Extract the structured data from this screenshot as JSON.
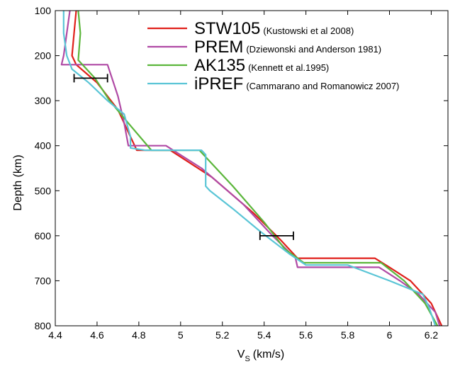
{
  "chart_data": {
    "type": "line",
    "xlabel": "V",
    "xlabel_subscript": "S",
    "xlabel_unit": "(km/s)",
    "ylabel": "Depth (km)",
    "xlim": [
      4.4,
      6.28
    ],
    "ylim": [
      100,
      800
    ],
    "y_inverted": true,
    "grid": false,
    "legend_position": "top-right",
    "x_ticks": [
      4.4,
      4.6,
      4.8,
      5,
      5.2,
      5.4,
      5.6,
      5.8,
      6,
      6.2
    ],
    "x_tick_labels": [
      "4.4",
      "4.6",
      "4.8",
      "5",
      "5.2",
      "5.4",
      "5.6",
      "5.8",
      "6",
      "6.2"
    ],
    "y_ticks": [
      100,
      200,
      300,
      400,
      500,
      600,
      700,
      800
    ],
    "y_tick_labels": [
      "100",
      "200",
      "300",
      "400",
      "500",
      "600",
      "700",
      "800"
    ],
    "series": [
      {
        "name": "STW105",
        "reference": "(Kustowski et al 2008)",
        "color": "#e0201b",
        "points": [
          [
            4.5,
            100
          ],
          [
            4.49,
            150
          ],
          [
            4.48,
            200
          ],
          [
            4.5,
            220
          ],
          [
            4.6,
            260
          ],
          [
            4.7,
            320
          ],
          [
            4.75,
            370
          ],
          [
            4.78,
            400
          ],
          [
            4.79,
            410
          ],
          [
            4.95,
            410
          ],
          [
            5.15,
            470
          ],
          [
            5.35,
            550
          ],
          [
            5.48,
            610
          ],
          [
            5.56,
            650
          ],
          [
            5.93,
            650
          ],
          [
            6.0,
            670
          ],
          [
            6.1,
            700
          ],
          [
            6.2,
            750
          ],
          [
            6.25,
            800
          ]
        ]
      },
      {
        "name": "PREM",
        "reference": "(Dziewonski and Anderson 1981)",
        "color": "#b04aa5",
        "points": [
          [
            4.47,
            100
          ],
          [
            4.455,
            150
          ],
          [
            4.44,
            200
          ],
          [
            4.43,
            220
          ],
          [
            4.65,
            220
          ],
          [
            4.7,
            290
          ],
          [
            4.73,
            350
          ],
          [
            4.75,
            400
          ],
          [
            4.93,
            400
          ],
          [
            5.1,
            450
          ],
          [
            5.3,
            530
          ],
          [
            5.44,
            600
          ],
          [
            5.55,
            650
          ],
          [
            5.56,
            670
          ],
          [
            5.95,
            670
          ],
          [
            6.05,
            700
          ],
          [
            6.14,
            730
          ],
          [
            6.22,
            770
          ],
          [
            6.24,
            800
          ]
        ]
      },
      {
        "name": "AK135",
        "reference": "(Kennett et al.1995)",
        "color": "#5bb63b",
        "points": [
          [
            4.51,
            100
          ],
          [
            4.52,
            150
          ],
          [
            4.51,
            210
          ],
          [
            4.59,
            250
          ],
          [
            4.66,
            300
          ],
          [
            4.75,
            350
          ],
          [
            4.86,
            410
          ],
          [
            5.09,
            410
          ],
          [
            5.25,
            490
          ],
          [
            5.4,
            570
          ],
          [
            5.5,
            630
          ],
          [
            5.59,
            660
          ],
          [
            5.96,
            660
          ],
          [
            6.07,
            700
          ],
          [
            6.17,
            750
          ],
          [
            6.23,
            800
          ]
        ]
      },
      {
        "name": "iPREF",
        "reference": "(Cammarano and Romanowicz 2007)",
        "color": "#5ac5d6",
        "points": [
          [
            4.44,
            100
          ],
          [
            4.44,
            150
          ],
          [
            4.455,
            200
          ],
          [
            4.48,
            230
          ],
          [
            4.56,
            260
          ],
          [
            4.65,
            300
          ],
          [
            4.73,
            330
          ],
          [
            4.76,
            380
          ],
          [
            4.76,
            405
          ],
          [
            4.83,
            410
          ],
          [
            5.1,
            410
          ],
          [
            5.12,
            420
          ],
          [
            5.12,
            490
          ],
          [
            5.14,
            500
          ],
          [
            5.25,
            540
          ],
          [
            5.38,
            590
          ],
          [
            5.52,
            640
          ],
          [
            5.6,
            665
          ],
          [
            5.8,
            665
          ],
          [
            6.0,
            700
          ],
          [
            6.16,
            730
          ],
          [
            6.19,
            760
          ],
          [
            6.22,
            800
          ]
        ]
      }
    ],
    "error_bars": [
      {
        "y": 250,
        "x_min": 4.49,
        "x_max": 4.65,
        "color": "#000000"
      },
      {
        "y": 600,
        "x_min": 5.38,
        "x_max": 5.54,
        "color": "#000000"
      }
    ]
  }
}
